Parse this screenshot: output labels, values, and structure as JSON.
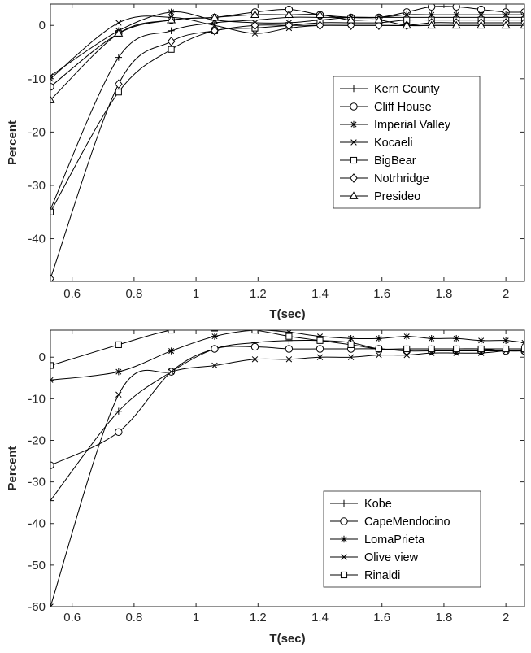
{
  "chart_data": [
    {
      "type": "line",
      "xlabel": "T(sec)",
      "ylabel": "Percent",
      "xlim": [
        0.53,
        2.06
      ],
      "ylim": [
        -48,
        4
      ],
      "xticks": [
        0.6,
        0.8,
        1,
        1.2,
        1.4,
        1.6,
        1.8,
        2
      ],
      "yticks": [
        -40,
        -30,
        -20,
        -10,
        0
      ],
      "grid": false,
      "legend_position": "right-middle",
      "series": [
        {
          "name": "Kern County",
          "marker": "plus",
          "x": [
            0.53,
            0.75,
            0.92,
            1.06,
            1.19,
            1.3,
            1.4,
            1.5,
            1.59,
            1.68,
            1.76,
            1.84,
            1.92,
            2.0,
            2.06
          ],
          "y": [
            -34.5,
            -6,
            -1,
            0.5,
            1,
            1.5,
            1.5,
            1.5,
            1.5,
            1.5,
            1.5,
            1.5,
            1.5,
            1.5,
            1.5
          ]
        },
        {
          "name": "Cliff House",
          "marker": "circle",
          "x": [
            0.53,
            0.75,
            0.92,
            1.06,
            1.19,
            1.3,
            1.4,
            1.5,
            1.59,
            1.68,
            1.76,
            1.84,
            1.92,
            2.0,
            2.06
          ],
          "y": [
            -11.5,
            -1.5,
            1,
            1.5,
            2.5,
            3,
            2,
            1.5,
            1.5,
            2.5,
            3.5,
            3.5,
            3,
            2.5,
            2.5
          ]
        },
        {
          "name": "Imperial Valley",
          "marker": "asterisk",
          "x": [
            0.53,
            0.75,
            0.92,
            1.06,
            1.19,
            1.3,
            1.4,
            1.5,
            1.59,
            1.68,
            1.76,
            1.84,
            1.92,
            2.0,
            2.06
          ],
          "y": [
            -9.5,
            -1,
            2.5,
            1,
            0.5,
            0.5,
            1,
            1.5,
            1.5,
            2,
            2,
            2,
            2,
            2,
            2
          ]
        },
        {
          "name": "Kocaeli",
          "marker": "x",
          "x": [
            0.53,
            0.75,
            0.92,
            1.06,
            1.19,
            1.3,
            1.4,
            1.5,
            1.59,
            1.68,
            1.76,
            1.84,
            1.92,
            2.0,
            2.06
          ],
          "y": [
            -10,
            0.5,
            1.5,
            0,
            -1.5,
            -0.5,
            0,
            0,
            0,
            0,
            0,
            0,
            0,
            0,
            0
          ]
        },
        {
          "name": "BigBear",
          "marker": "square",
          "x": [
            0.53,
            0.75,
            0.92,
            1.06,
            1.19,
            1.3,
            1.4,
            1.5,
            1.59,
            1.68,
            1.76,
            1.84,
            1.92,
            2.0,
            2.06
          ],
          "y": [
            -35,
            -12.5,
            -4.5,
            -1,
            -0.5,
            0,
            0.5,
            0.5,
            0.5,
            1,
            1,
            1,
            1,
            1,
            1
          ]
        },
        {
          "name": "Notrhridge",
          "marker": "diamond",
          "x": [
            0.53,
            0.75,
            0.92,
            1.06,
            1.19,
            1.3,
            1.4,
            1.5,
            1.59,
            1.68,
            1.76,
            1.84,
            1.92,
            2.0,
            2.06
          ],
          "y": [
            -47.5,
            -11,
            -3,
            -1,
            0,
            0,
            0,
            0,
            0,
            0,
            0.5,
            0.5,
            0.5,
            0.5,
            0.5
          ]
        },
        {
          "name": "Presideo",
          "marker": "triangle",
          "x": [
            0.53,
            0.75,
            0.92,
            1.06,
            1.19,
            1.3,
            1.4,
            1.5,
            1.59,
            1.68,
            1.76,
            1.84,
            1.92,
            2.0,
            2.06
          ],
          "y": [
            -14,
            -1.5,
            1,
            1.5,
            2,
            2,
            2,
            1,
            1,
            0,
            0,
            0,
            0,
            0,
            0
          ]
        }
      ]
    },
    {
      "type": "line",
      "xlabel": "T(sec)",
      "ylabel": "Percent",
      "xlim": [
        0.53,
        2.06
      ],
      "ylim": [
        -60,
        6.5
      ],
      "xticks": [
        0.6,
        0.8,
        1,
        1.2,
        1.4,
        1.6,
        1.8,
        2
      ],
      "yticks": [
        -60,
        -50,
        -40,
        -30,
        -20,
        -10,
        0
      ],
      "grid": false,
      "legend_position": "bottom-right",
      "series": [
        {
          "name": "Kobe",
          "marker": "plus",
          "x": [
            0.53,
            0.75,
            0.92,
            1.06,
            1.19,
            1.3,
            1.4,
            1.5,
            1.59,
            1.68,
            1.76,
            1.84,
            1.92,
            2.0,
            2.06
          ],
          "y": [
            -34.5,
            -13,
            -3.5,
            2,
            3.5,
            4,
            4,
            3.5,
            2,
            2,
            2,
            2,
            2,
            1.5,
            1.5
          ]
        },
        {
          "name": "CapeMendocino",
          "marker": "circle",
          "x": [
            0.53,
            0.75,
            0.92,
            1.06,
            1.19,
            1.3,
            1.4,
            1.5,
            1.59,
            1.68,
            1.76,
            1.84,
            1.92,
            2.0,
            2.06
          ],
          "y": [
            -26,
            -18,
            -3.5,
            2,
            2.5,
            2,
            2,
            2,
            2,
            1.5,
            1.5,
            1.5,
            1.5,
            1.5,
            1.5
          ]
        },
        {
          "name": "LomaPrieta",
          "marker": "asterisk",
          "x": [
            0.53,
            0.75,
            0.92,
            1.06,
            1.19,
            1.3,
            1.4,
            1.5,
            1.59,
            1.68,
            1.76,
            1.84,
            1.92,
            2.0,
            2.06
          ],
          "y": [
            -5.5,
            -3.5,
            1.5,
            5,
            6.5,
            6,
            5,
            4.5,
            4.5,
            5,
            4.5,
            4.5,
            4,
            4,
            3.5
          ]
        },
        {
          "name": "Olive view",
          "marker": "x",
          "x": [
            0.53,
            0.75,
            0.92,
            1.06,
            1.19,
            1.3,
            1.4,
            1.5,
            1.59,
            1.68,
            1.76,
            1.84,
            1.92,
            2.0,
            2.06
          ],
          "y": [
            -60,
            -9,
            -3.5,
            -2,
            -0.5,
            -0.5,
            0,
            0,
            0.5,
            0.5,
            1,
            1,
            1,
            1.5,
            1.5
          ]
        },
        {
          "name": "Rinaldi",
          "marker": "square",
          "x": [
            0.53,
            0.75,
            0.92,
            1.06,
            1.19,
            1.3,
            1.4,
            1.5,
            1.59,
            1.68,
            1.76,
            1.84,
            1.92,
            2.0,
            2.06
          ],
          "y": [
            -2,
            3,
            6.5,
            7,
            6.5,
            5,
            4,
            3,
            2,
            2,
            2,
            2,
            2,
            2,
            2
          ]
        }
      ]
    }
  ]
}
